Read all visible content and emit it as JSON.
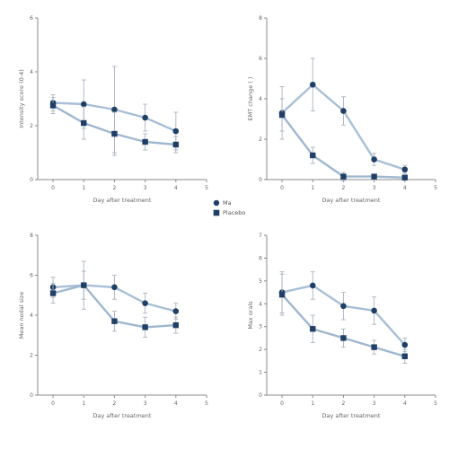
{
  "colors": {
    "series_a_line": "#a8bfd6",
    "series_b_line": "#9fb7cf",
    "marker": "#1f3f66",
    "errorbar": "#aab4c0",
    "axis": "#8a8a8a"
  },
  "legend": {
    "entries": [
      {
        "name": "Ma",
        "marker": "circle"
      },
      {
        "name": "Placebo",
        "marker": "square"
      }
    ],
    "placement": "center"
  },
  "chart_data": [
    {
      "type": "line",
      "position": "top-left",
      "xlabel": "Day after treatment",
      "ylabel": "Intensity score (0-4)",
      "xlim": [
        -0.5,
        5
      ],
      "ylim": [
        0,
        6
      ],
      "xticks": [
        0,
        1,
        2,
        3,
        4,
        5
      ],
      "yticks": [
        0,
        2,
        4,
        6
      ],
      "series": [
        {
          "name": "Ma",
          "x": [
            0,
            1,
            2,
            3,
            4
          ],
          "y": [
            2.85,
            2.8,
            2.6,
            2.3,
            1.8
          ],
          "err": [
            0.3,
            0.9,
            1.6,
            0.5,
            0.7
          ]
        },
        {
          "name": "Placebo",
          "x": [
            0,
            1,
            2,
            3,
            4
          ],
          "y": [
            2.75,
            2.1,
            1.7,
            1.4,
            1.3
          ],
          "err": [
            0.3,
            0.6,
            0.8,
            0.3,
            0.3
          ]
        }
      ]
    },
    {
      "type": "line",
      "position": "top-right",
      "xlabel": "Day after treatment",
      "ylabel": "EMT change ( )",
      "xlim": [
        -0.5,
        5
      ],
      "ylim": [
        0,
        8
      ],
      "xticks": [
        0,
        1,
        2,
        3,
        4,
        5
      ],
      "yticks": [
        0,
        2,
        4,
        6,
        8
      ],
      "series": [
        {
          "name": "Ma",
          "x": [
            0,
            1,
            2,
            3,
            4
          ],
          "y": [
            3.3,
            4.7,
            3.4,
            1.0,
            0.5
          ],
          "err": [
            1.3,
            1.3,
            0.7,
            0.3,
            0.2
          ]
        },
        {
          "name": "Placebo",
          "x": [
            0,
            1,
            2,
            3,
            4
          ],
          "y": [
            3.2,
            1.2,
            0.15,
            0.15,
            0.1
          ],
          "err": [
            0.8,
            0.4,
            0.2,
            0.1,
            0.1
          ]
        }
      ]
    },
    {
      "type": "line",
      "position": "bottom-left",
      "xlabel": "Day after treatment",
      "ylabel": "Mean nodal size",
      "xlim": [
        -0.5,
        5
      ],
      "ylim": [
        0,
        8
      ],
      "xticks": [
        0,
        1,
        2,
        3,
        4,
        5
      ],
      "yticks": [
        0,
        2,
        4,
        6,
        8
      ],
      "series": [
        {
          "name": "Ma",
          "x": [
            0,
            1,
            2,
            3,
            4
          ],
          "y": [
            5.4,
            5.5,
            5.4,
            4.6,
            4.2
          ],
          "err": [
            0.5,
            1.2,
            0.6,
            0.5,
            0.4
          ]
        },
        {
          "name": "Placebo",
          "x": [
            0,
            1,
            2,
            3,
            4
          ],
          "y": [
            5.1,
            5.5,
            3.7,
            3.4,
            3.5
          ],
          "err": [
            0.5,
            0.7,
            0.5,
            0.5,
            0.4
          ]
        }
      ]
    },
    {
      "type": "line",
      "position": "bottom-right",
      "xlabel": "Day after treatment",
      "ylabel": "Max orals",
      "xlim": [
        -0.5,
        5
      ],
      "ylim": [
        0,
        7
      ],
      "xticks": [
        0,
        1,
        2,
        3,
        4,
        5
      ],
      "yticks": [
        0,
        1,
        2,
        3,
        4,
        5,
        6,
        7
      ],
      "series": [
        {
          "name": "Ma",
          "x": [
            0,
            1,
            2,
            3,
            4
          ],
          "y": [
            4.5,
            4.8,
            3.9,
            3.7,
            2.2
          ],
          "err": [
            0.9,
            0.6,
            0.6,
            0.6,
            0.3
          ]
        },
        {
          "name": "Placebo",
          "x": [
            0,
            1,
            2,
            3,
            4
          ],
          "y": [
            4.4,
            2.9,
            2.5,
            2.1,
            1.7
          ],
          "err": [
            0.9,
            0.6,
            0.4,
            0.3,
            0.3
          ]
        }
      ]
    }
  ]
}
